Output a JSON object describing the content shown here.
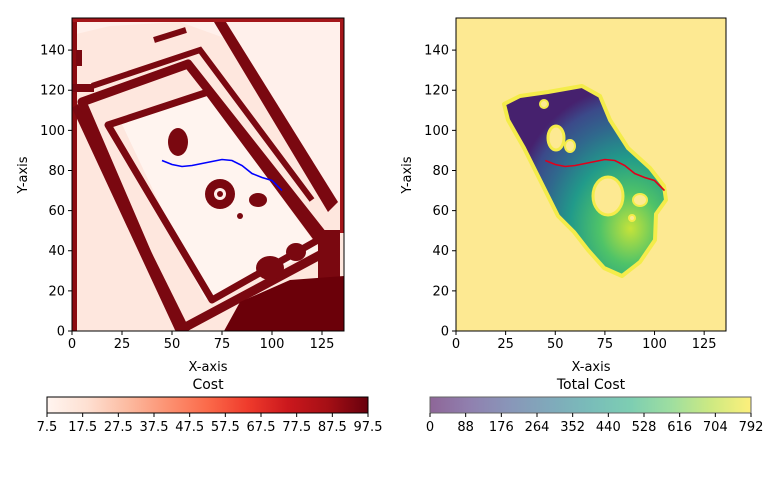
{
  "chart_data": [
    {
      "type": "heatmap",
      "title": "",
      "xlabel": "X-axis",
      "ylabel": "Y-axis",
      "xlim": [
        0,
        136
      ],
      "ylim": [
        0,
        156
      ],
      "xticks": [
        0,
        25,
        50,
        75,
        100,
        125
      ],
      "yticks": [
        0,
        20,
        40,
        60,
        80,
        100,
        120,
        140
      ],
      "colormap": "Reds",
      "path": {
        "color": "#0000ff",
        "x": [
          45,
          50,
          55,
          60,
          65,
          70,
          75,
          80,
          85,
          90,
          95,
          100,
          105
        ],
        "y": [
          85,
          83,
          82,
          82.5,
          83.5,
          84.5,
          85.5,
          85,
          82.5,
          78.5,
          76.5,
          75,
          70
        ]
      },
      "colorbar": {
        "label": "Cost",
        "ticks": [
          "7.5",
          "17.5",
          "27.5",
          "37.5",
          "47.5",
          "57.5",
          "67.5",
          "77.5",
          "87.5",
          "97.5"
        ],
        "range": [
          7.5,
          97.5
        ],
        "colors": [
          "#fff5f0",
          "#fee0d2",
          "#fcbba1",
          "#fc9272",
          "#fb6a4a",
          "#ef3b2c",
          "#cb181d",
          "#a50f15",
          "#67000d"
        ]
      }
    },
    {
      "type": "heatmap",
      "title": "",
      "xlabel": "X-axis",
      "ylabel": "Y-axis",
      "xlim": [
        0,
        136
      ],
      "ylim": [
        0,
        156
      ],
      "xticks": [
        0,
        25,
        50,
        75,
        100,
        125
      ],
      "yticks": [
        0,
        20,
        40,
        60,
        80,
        100,
        120,
        140
      ],
      "colormap": "viridis",
      "background_color": "#fde992",
      "path": {
        "color": "#e0001b",
        "x": [
          45,
          50,
          55,
          60,
          65,
          70,
          75,
          80,
          85,
          90,
          95,
          100,
          105
        ],
        "y": [
          85,
          83,
          82,
          82.5,
          83.5,
          84.5,
          85.5,
          85,
          82.5,
          78.5,
          76.5,
          75,
          70
        ]
      },
      "colorbar": {
        "label": "Total Cost",
        "ticks": [
          "0",
          "88",
          "176",
          "264",
          "352",
          "440",
          "528",
          "616",
          "704",
          "792"
        ],
        "range": [
          0,
          792
        ],
        "colors": [
          "#440154",
          "#472d7b",
          "#3b528b",
          "#2c728e",
          "#21918c",
          "#28ae80",
          "#5ec962",
          "#addc30",
          "#fde725"
        ]
      }
    }
  ]
}
